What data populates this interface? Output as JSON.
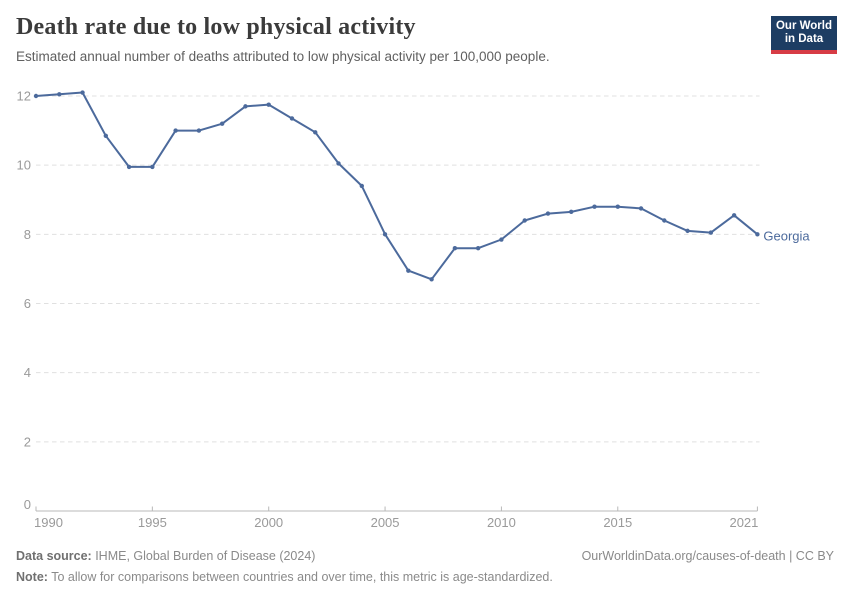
{
  "header": {
    "title": "Death rate due to low physical activity",
    "subtitle": "Estimated annual number of deaths attributed to low physical activity per 100,000 people."
  },
  "logo": {
    "line1": "Our World",
    "line2": "in Data",
    "bg_color": "#1d3d63",
    "accent_color": "#d73c45"
  },
  "footer": {
    "datasource_label": "Data source:",
    "datasource_text": " IHME, Global Burden of Disease (2024)",
    "note_label": "Note:",
    "note_text": " To allow for comparisons between countries and over time, this metric is age-standardized.",
    "link_text": "OurWorldinData.org/causes-of-death | CC BY"
  },
  "chart_data": {
    "type": "line",
    "title": "Death rate due to low physical activity",
    "subtitle": "Estimated annual number of deaths attributed to low physical activity per 100,000 people.",
    "xlabel": "",
    "ylabel": "",
    "xlim": [
      1990,
      2021
    ],
    "ylim": [
      0,
      12
    ],
    "xticks": [
      1990,
      1995,
      2000,
      2005,
      2010,
      2015,
      2021
    ],
    "yticks": [
      0,
      2,
      4,
      6,
      8,
      10,
      12
    ],
    "grid": "horizontal-dashed",
    "legend_position": "end-of-line-label",
    "x": [
      1990,
      1991,
      1992,
      1993,
      1994,
      1995,
      1996,
      1997,
      1998,
      1999,
      2000,
      2001,
      2002,
      2003,
      2004,
      2005,
      2006,
      2007,
      2008,
      2009,
      2010,
      2011,
      2012,
      2013,
      2014,
      2015,
      2016,
      2017,
      2018,
      2019,
      2020,
      2021
    ],
    "series": [
      {
        "name": "Georgia",
        "color": "#4c6a9c",
        "values": [
          12.0,
          12.05,
          12.1,
          10.85,
          9.95,
          9.95,
          11.0,
          11.0,
          11.2,
          11.7,
          11.75,
          11.35,
          10.95,
          10.05,
          9.4,
          8.0,
          6.95,
          6.7,
          7.6,
          7.6,
          7.85,
          8.4,
          8.6,
          8.65,
          8.8,
          8.8,
          8.75,
          8.4,
          8.1,
          8.05,
          8.55,
          8.0
        ]
      }
    ]
  },
  "colors": {
    "grid": "#e0e0e0",
    "axis": "#b8b8b8",
    "tick_label": "#9a9a9a",
    "line": "#4c6a9c"
  }
}
